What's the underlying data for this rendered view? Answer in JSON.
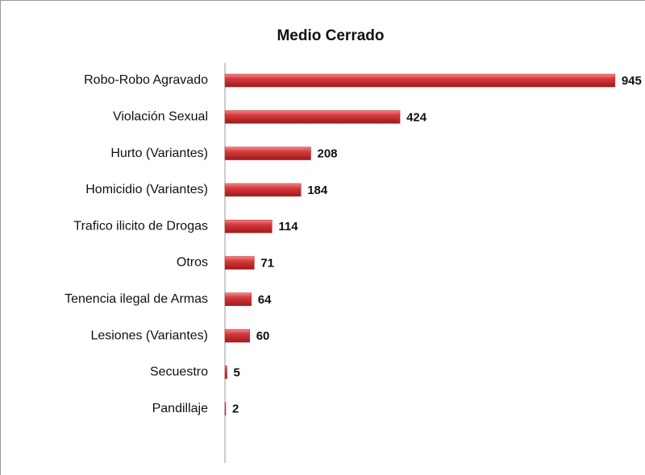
{
  "chart_data": {
    "type": "hbar",
    "title": "Medio Cerrado",
    "categories": [
      "Robo-Robo Agravado",
      "Violación Sexual",
      "Hurto (Variantes)",
      "Homicidio (Variantes)",
      "Trafico ilicito de Drogas",
      "Otros",
      "Tenencia ilegal de Armas",
      "Lesiones (Variantes)",
      "Secuestro",
      "Pandillaje"
    ],
    "values": [
      945,
      424,
      208,
      184,
      114,
      71,
      64,
      60,
      5,
      2
    ],
    "color": "#c0282c",
    "xlim": [
      0,
      1000
    ]
  }
}
